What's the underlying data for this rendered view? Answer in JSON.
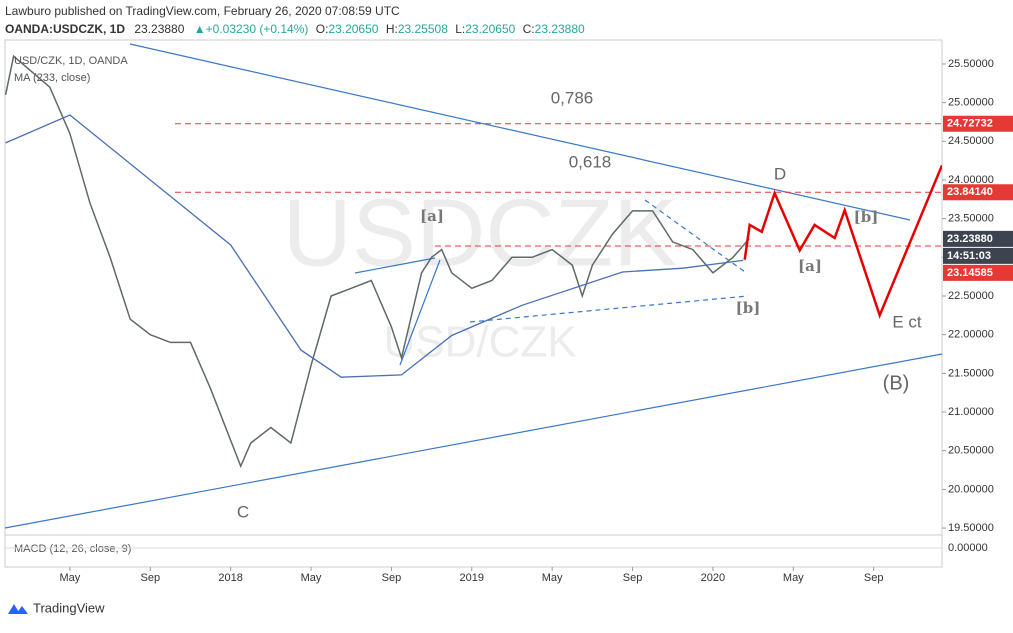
{
  "header": {
    "publisher": "Lawburo published on TradingView.com, February 26, 2020 07:08:59 UTC",
    "symbol": "OANDA:USDCZK, 1D",
    "last": "23.23880",
    "change": "+0.03230 (+0.14%)",
    "ohlc": [
      {
        "label": "O:",
        "value": "23.20650"
      },
      {
        "label": "H:",
        "value": "23.25508"
      },
      {
        "label": "L:",
        "value": "23.20650"
      },
      {
        "label": "C:",
        "value": "23.23880"
      }
    ]
  },
  "chart_data": {
    "type": "line",
    "watermark": "USDCZK",
    "watermark_sub": "USD/CZK",
    "xlim": [
      0.77,
      47.4
    ],
    "xticks": [
      {
        "value": 4,
        "label": "May"
      },
      {
        "value": 8,
        "label": "Sep"
      },
      {
        "value": 12,
        "label": "2018"
      },
      {
        "value": 16,
        "label": "May"
      },
      {
        "value": 20,
        "label": "Sep"
      },
      {
        "value": 24,
        "label": "2019"
      },
      {
        "value": 28,
        "label": "May"
      },
      {
        "value": 32,
        "label": "Sep"
      },
      {
        "value": 36,
        "label": "2020"
      },
      {
        "value": 40,
        "label": "May"
      },
      {
        "value": 44,
        "label": "Sep"
      }
    ],
    "ylim": [
      19.41,
      25.81
    ],
    "yticks": [
      {
        "value": 19.5,
        "label": "19.50000"
      },
      {
        "value": 20,
        "label": "20.00000"
      },
      {
        "value": 20.5,
        "label": "20.50000"
      },
      {
        "value": 21,
        "label": "21.00000"
      },
      {
        "value": 21.5,
        "label": "21.50000"
      },
      {
        "value": 22,
        "label": "22.00000"
      },
      {
        "value": 22.5,
        "label": "22.50000"
      },
      {
        "value": 23,
        "label": "23.00000"
      },
      {
        "value": 23.5,
        "label": "23.50000"
      },
      {
        "value": 24,
        "label": "24.00000"
      },
      {
        "value": 24.5,
        "label": "24.50000"
      },
      {
        "value": 25,
        "label": "25.00000"
      },
      {
        "value": 25.5,
        "label": "25.50000"
      }
    ],
    "series": [
      {
        "name": "USD/CZK, 1D, OANDA",
        "color": "#5d6b64",
        "x": [
          0.8,
          1.2,
          3,
          4,
          5,
          6,
          7,
          8,
          9,
          10,
          11,
          12.5,
          13,
          14,
          15,
          16,
          17,
          18,
          19,
          20,
          20.5,
          21.5,
          22,
          22.5,
          23,
          24,
          25,
          26,
          27,
          28,
          29,
          29.5,
          30,
          31,
          32,
          33,
          34,
          35,
          36,
          37,
          37.8
        ],
        "values": [
          25.1,
          25.6,
          25.2,
          24.6,
          23.7,
          23.0,
          22.2,
          22.0,
          21.9,
          21.9,
          21.3,
          20.3,
          20.6,
          20.8,
          20.6,
          21.6,
          22.5,
          22.6,
          22.7,
          22.1,
          21.7,
          22.8,
          23.0,
          23.1,
          22.8,
          22.6,
          22.7,
          23.0,
          23.0,
          23.1,
          22.9,
          22.5,
          22.9,
          23.3,
          23.6,
          23.6,
          23.2,
          23.1,
          22.8,
          23.0,
          23.24
        ]
      },
      {
        "name": "MA (233, close)",
        "color": "#4a6fb5",
        "x": [
          0.8,
          4,
          12,
          15.5,
          17.5,
          20.5,
          23,
          26.5,
          31.5,
          34.5,
          37.5
        ],
        "values": [
          24.48,
          24.84,
          23.16,
          21.8,
          21.45,
          21.48,
          21.99,
          22.38,
          22.81,
          22.86,
          22.96
        ]
      }
    ],
    "projection": {
      "color": "#e60000",
      "x": [
        37.58,
        37.83,
        38.43,
        39.07,
        40.32,
        41.06,
        42.06,
        42.56,
        44.3,
        47.4
      ],
      "values": [
        22.97,
        23.42,
        23.33,
        23.83,
        23.09,
        23.42,
        23.25,
        23.61,
        22.25,
        24.19
      ]
    },
    "levels": [
      {
        "value": 24.72732,
        "label": "24.72732",
        "color": "#e53935"
      },
      {
        "value": 23.8414,
        "label": "23.84140",
        "color": "#e53935"
      },
      {
        "value": 23.14585,
        "label": "23.14585",
        "color": "#e53935"
      }
    ],
    "current": {
      "value": 23.2388,
      "label": "23.23880",
      "countdown": "14:51:03",
      "color": "#3d4450"
    },
    "annotations": [
      "0,786",
      "0,618",
      "D",
      "[a]",
      "[b]",
      "[a]",
      "[b]",
      "E ct",
      "(B)",
      "C"
    ],
    "macd": {
      "label": "MACD (12, 26, close, 9)",
      "ticks": [
        {
          "value": 0,
          "label": "0.00000"
        }
      ]
    }
  },
  "footer": "TradingView"
}
